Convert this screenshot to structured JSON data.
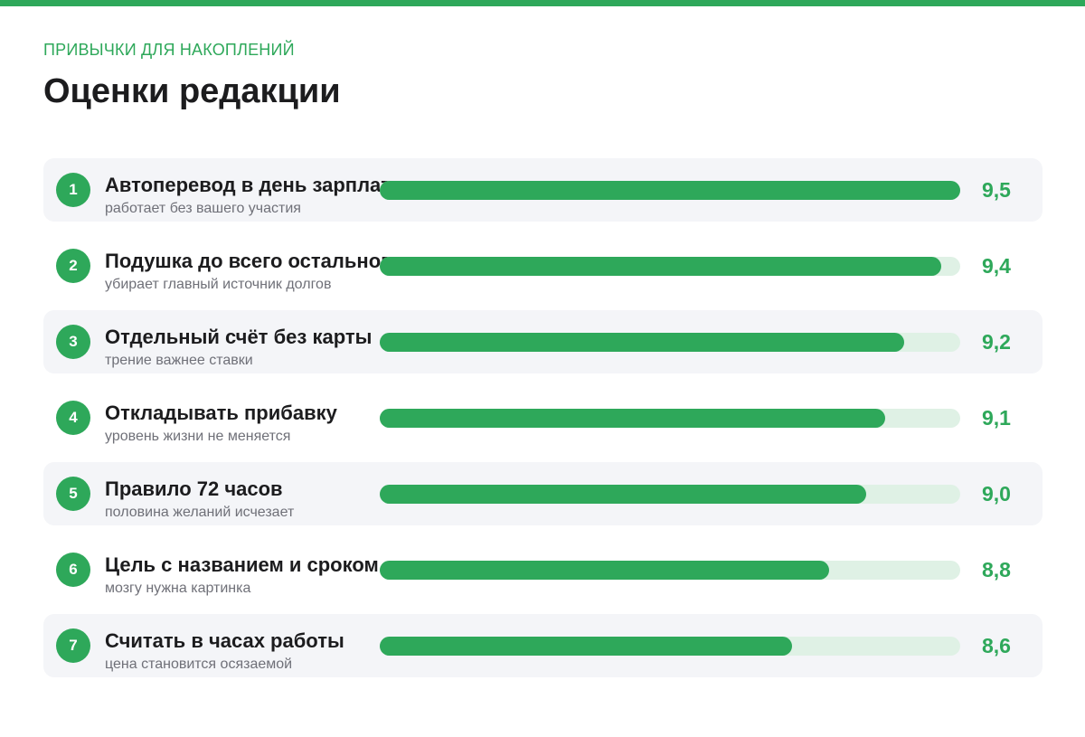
{
  "header": {
    "kicker": "ПРИВЫЧКИ ДЛЯ НАКОПЛЕНИЙ",
    "title": "Оценки редакции"
  },
  "colors": {
    "accent": "#2ea85a",
    "track": "#dff1e5",
    "row_shade": "#f4f5f8"
  },
  "chart_data": {
    "type": "bar",
    "orientation": "horizontal",
    "xlim": [
      6.4,
      9.5
    ],
    "grid": false,
    "categories": [
      "Автоперевод в день зарплаты",
      "Подушка до всего остального",
      "Отдельный счёт без карты",
      "Откладывать прибавку",
      "Правило 72 часов",
      "Цель с названием и сроком",
      "Считать в часах работы"
    ],
    "values": [
      9.5,
      9.4,
      9.2,
      9.1,
      9.0,
      8.8,
      8.6
    ],
    "rows": [
      {
        "rank": "1",
        "name": "Автоперевод в день зарплаты",
        "sub": "работает без вашего участия",
        "score": "9,5",
        "value": 9.5
      },
      {
        "rank": "2",
        "name": "Подушка до всего остального",
        "sub": "убирает главный источник долгов",
        "score": "9,4",
        "value": 9.4
      },
      {
        "rank": "3",
        "name": "Отдельный счёт без карты",
        "sub": "трение важнее ставки",
        "score": "9,2",
        "value": 9.2
      },
      {
        "rank": "4",
        "name": "Откладывать прибавку",
        "sub": "уровень жизни не меняется",
        "score": "9,1",
        "value": 9.1
      },
      {
        "rank": "5",
        "name": "Правило 72 часов",
        "sub": "половина желаний исчезает",
        "score": "9,0",
        "value": 9.0
      },
      {
        "rank": "6",
        "name": "Цель с названием и сроком",
        "sub": "мозгу нужна картинка",
        "score": "8,8",
        "value": 8.8
      },
      {
        "rank": "7",
        "name": "Считать в часах работы",
        "sub": "цена становится осязаемой",
        "score": "8,6",
        "value": 8.6
      }
    ]
  }
}
